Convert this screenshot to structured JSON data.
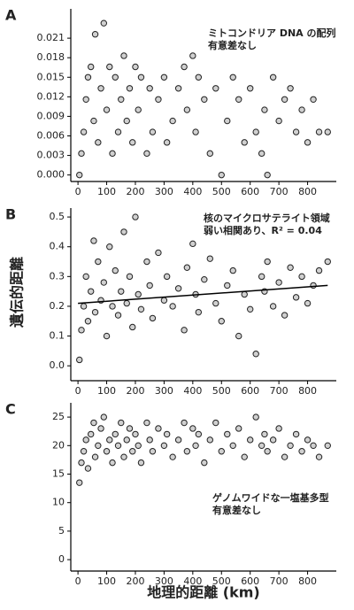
{
  "chart_data": [
    {
      "type": "scatter",
      "label": "A",
      "annotation": [
        "ミトコンドリア DNA の配列",
        "有意差なし"
      ],
      "x": [
        5,
        12,
        20,
        28,
        35,
        45,
        55,
        60,
        70,
        80,
        90,
        100,
        110,
        120,
        130,
        140,
        150,
        160,
        170,
        180,
        190,
        200,
        210,
        220,
        240,
        250,
        260,
        280,
        300,
        310,
        330,
        350,
        370,
        380,
        400,
        410,
        420,
        440,
        460,
        480,
        500,
        520,
        540,
        560,
        580,
        600,
        620,
        640,
        650,
        660,
        680,
        700,
        720,
        740,
        760,
        780,
        800,
        820,
        840,
        870
      ],
      "y": [
        0.0,
        0.0033,
        0.0066,
        0.0116,
        0.015,
        0.0166,
        0.0083,
        0.0216,
        0.005,
        0.0133,
        0.0233,
        0.01,
        0.0166,
        0.0033,
        0.015,
        0.0066,
        0.0116,
        0.0183,
        0.0083,
        0.0133,
        0.005,
        0.0166,
        0.01,
        0.015,
        0.0033,
        0.0133,
        0.0066,
        0.0116,
        0.015,
        0.005,
        0.0083,
        0.0133,
        0.0166,
        0.01,
        0.0183,
        0.0066,
        0.015,
        0.0116,
        0.0033,
        0.0133,
        0.0,
        0.0083,
        0.015,
        0.0116,
        0.005,
        0.0133,
        0.0066,
        0.0033,
        0.01,
        0.0,
        0.015,
        0.0083,
        0.0116,
        0.0133,
        0.0066,
        0.01,
        0.005,
        0.0116,
        0.0066,
        0.0066
      ],
      "xlim": [
        -25,
        900
      ],
      "xticks": [
        0,
        100,
        200,
        300,
        400,
        500,
        600,
        700,
        800
      ],
      "ylim": [
        -0.001,
        0.0255
      ],
      "yticks": [
        {
          "value": 0,
          "label": "0.000"
        },
        0.003,
        0.006,
        0.009,
        0.012,
        0.015,
        0.018,
        0.021
      ]
    },
    {
      "type": "scatter",
      "label": "B",
      "annotation": [
        "核のマイクロサテライト領域",
        "弱い相関あり、R² = 0.04"
      ],
      "ylabel": "遺伝的距離",
      "x": [
        5,
        12,
        20,
        28,
        35,
        45,
        55,
        60,
        70,
        80,
        90,
        100,
        110,
        120,
        130,
        140,
        150,
        160,
        170,
        180,
        190,
        200,
        210,
        220,
        240,
        250,
        260,
        280,
        300,
        310,
        330,
        350,
        370,
        380,
        400,
        410,
        420,
        440,
        460,
        480,
        500,
        520,
        540,
        560,
        580,
        600,
        620,
        640,
        650,
        660,
        680,
        700,
        720,
        740,
        760,
        780,
        800,
        820,
        840,
        870
      ],
      "y": [
        0.02,
        0.12,
        0.2,
        0.3,
        0.15,
        0.25,
        0.42,
        0.18,
        0.35,
        0.22,
        0.28,
        0.1,
        0.4,
        0.2,
        0.32,
        0.17,
        0.25,
        0.45,
        0.21,
        0.3,
        0.13,
        0.5,
        0.24,
        0.19,
        0.35,
        0.27,
        0.16,
        0.38,
        0.22,
        0.3,
        0.2,
        0.26,
        0.12,
        0.33,
        0.41,
        0.24,
        0.18,
        0.29,
        0.36,
        0.21,
        0.15,
        0.27,
        0.32,
        0.1,
        0.24,
        0.19,
        0.04,
        0.3,
        0.25,
        0.35,
        0.2,
        0.28,
        0.17,
        0.33,
        0.23,
        0.3,
        0.21,
        0.27,
        0.32,
        0.35
      ],
      "fit": {
        "x": [
          0,
          870
        ],
        "y": [
          0.21,
          0.27
        ]
      },
      "xlim": [
        -25,
        900
      ],
      "xticks": [
        0,
        100,
        200,
        300,
        400,
        500,
        600,
        700,
        800
      ],
      "ylim": [
        -0.05,
        0.53
      ],
      "yticks": [
        {
          "value": 0,
          "label": "0.0"
        },
        0.1,
        0.2,
        0.3,
        0.4,
        0.5
      ]
    },
    {
      "type": "scatter",
      "label": "C",
      "annotation": [
        "ゲノムワイドな一塩基多型",
        "有意差なし"
      ],
      "xlabel": "地理的距離 (km)",
      "x": [
        5,
        12,
        20,
        28,
        35,
        45,
        55,
        60,
        70,
        80,
        90,
        100,
        110,
        120,
        130,
        140,
        150,
        160,
        170,
        180,
        190,
        200,
        210,
        220,
        240,
        250,
        260,
        280,
        300,
        310,
        330,
        350,
        370,
        380,
        400,
        410,
        420,
        440,
        460,
        480,
        500,
        520,
        540,
        560,
        580,
        600,
        620,
        640,
        650,
        660,
        680,
        700,
        720,
        740,
        760,
        780,
        800,
        820,
        840,
        870
      ],
      "y": [
        13.5,
        17,
        19,
        21,
        16,
        22,
        24,
        18,
        20,
        23,
        25,
        19,
        21,
        17,
        22,
        20,
        24,
        18,
        21,
        23,
        19,
        22,
        20,
        17,
        24,
        21,
        19,
        23,
        20,
        22,
        18,
        21,
        24,
        19,
        23,
        20,
        22,
        17,
        21,
        24,
        19,
        22,
        20,
        23,
        18,
        21,
        25,
        20,
        22,
        19,
        21,
        23,
        18,
        20,
        22,
        19,
        21,
        20,
        18,
        20
      ],
      "xlim": [
        -25,
        900
      ],
      "xticks": [
        0,
        100,
        200,
        300,
        400,
        500,
        600,
        700,
        800
      ],
      "ylim": [
        -2,
        27.5
      ],
      "yticks": [
        0,
        5,
        10,
        15,
        20,
        25
      ]
    }
  ]
}
